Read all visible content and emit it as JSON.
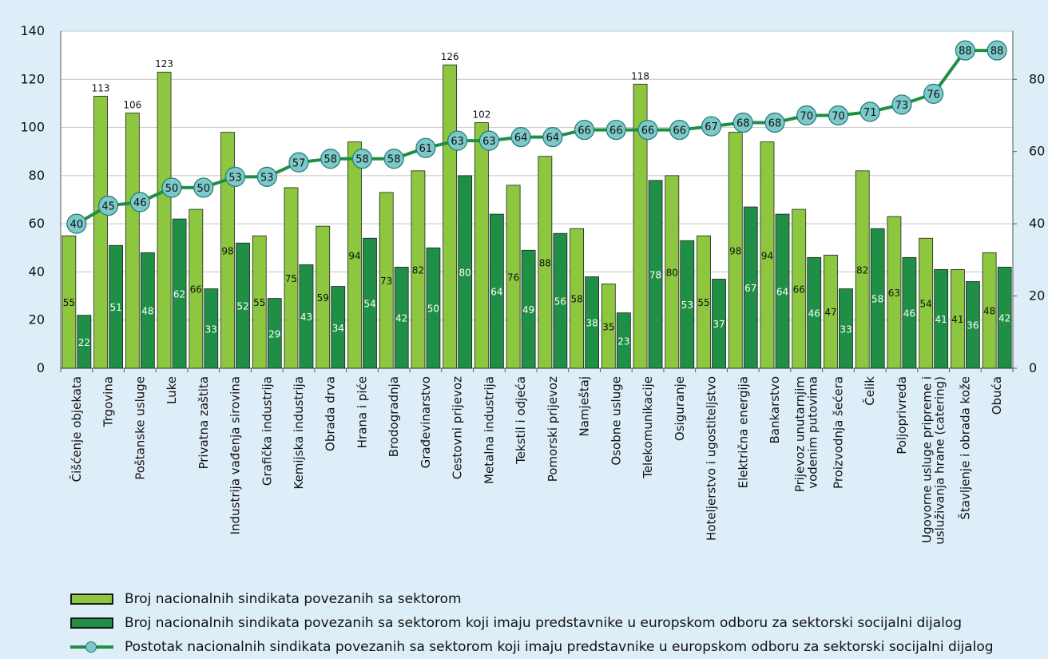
{
  "chart_data": {
    "type": "bar",
    "categories": [
      "Čišćenje objekata",
      "Trgovina",
      "Poštanske usluge",
      "Luke",
      "Privatna zaštita",
      "Industrija vađenja sirovina",
      "Grafička industrija",
      "Kemijska industrija",
      "Obrada drva",
      "Hrana i piće",
      "Brodogradnja",
      "Građevinarstvo",
      "Cestovni prijevoz",
      "Metalna industrija",
      "Tekstil i odjeća",
      "Pomorski prijevoz",
      "Namještaj",
      "Osobne usluge",
      "Telekomunikacije",
      "Osiguranje",
      "Hoteljerstvo i ugostiteljstvo",
      "Električna energija",
      "Bankarstvo",
      "Prijevoz unutarnjim vodenim putovima",
      "Proizvodnja šećera",
      "Čelik",
      "Poljoprivreda",
      "Ugovorne usluge pripreme i usluživanja hrane (catering)",
      "Štavljenje i obrada kože",
      "Obuća"
    ],
    "category_lines": [
      [
        "Čišćenje objekata"
      ],
      [
        "Trgovina"
      ],
      [
        "Poštanske usluge"
      ],
      [
        "Luke"
      ],
      [
        "Privatna zaštita"
      ],
      [
        "Industrija vađenja sirovina"
      ],
      [
        "Grafička industrija"
      ],
      [
        "Kemijska industrija"
      ],
      [
        "Obrada drva"
      ],
      [
        "Hrana i piće"
      ],
      [
        "Brodogradnja"
      ],
      [
        "Građevinarstvo"
      ],
      [
        "Cestovni prijevoz"
      ],
      [
        "Metalna industrija"
      ],
      [
        "Tekstil i odjeća"
      ],
      [
        "Pomorski prijevoz"
      ],
      [
        "Namještaj"
      ],
      [
        "Osobne usluge"
      ],
      [
        "Telekomunikacije"
      ],
      [
        "Osiguranje"
      ],
      [
        "Hoteljerstvo i ugostiteljstvo"
      ],
      [
        "Električna energija"
      ],
      [
        "Bankarstvo"
      ],
      [
        "Prijevoz unutarnjim",
        "vodenim putovima"
      ],
      [
        "Proizvodnja šećera"
      ],
      [
        "Čelik"
      ],
      [
        "Poljoprivreda"
      ],
      [
        "Ugovorne usluge pripreme i",
        "usluživanja hrane (catering)"
      ],
      [
        "Štavljenje i obrada kože"
      ],
      [
        "Obuća"
      ]
    ],
    "series": [
      {
        "name": "Broj nacionalnih sindikata povezanih sa sektorom",
        "kind": "bar",
        "axis": "left",
        "color": "#8dc63f",
        "values": [
          55,
          113,
          106,
          123,
          66,
          98,
          55,
          75,
          59,
          94,
          73,
          82,
          126,
          102,
          76,
          88,
          58,
          35,
          118,
          80,
          55,
          98,
          94,
          66,
          47,
          82,
          63,
          54,
          41,
          48
        ]
      },
      {
        "name": "Broj nacionalnih sindikata povezanih sa sektorom koji imaju predstavnike u europskom odboru za sektorski socijalni dijalog",
        "kind": "bar",
        "axis": "left",
        "color": "#1f8f45",
        "values": [
          22,
          51,
          48,
          62,
          33,
          52,
          29,
          43,
          34,
          54,
          42,
          50,
          80,
          64,
          49,
          56,
          38,
          23,
          78,
          53,
          37,
          67,
          64,
          46,
          33,
          58,
          46,
          41,
          36,
          42
        ]
      },
      {
        "name": "Postotak nacionalnih sindikata povezanih sa sektorom koji imaju predstavnike u europskom odboru za sektorski socijalni dijalog",
        "kind": "line",
        "axis": "right",
        "color": "#1f8f45",
        "marker_color": "#7dc8c8",
        "values": [
          40,
          45,
          46,
          50,
          50,
          53,
          53,
          57,
          58,
          58,
          58,
          61,
          63,
          63,
          64,
          64,
          66,
          66,
          66,
          66,
          67,
          68,
          68,
          70,
          70,
          71,
          73,
          76,
          88,
          88
        ]
      }
    ],
    "y_left": {
      "min": 0,
      "max": 140,
      "ticks": [
        0,
        20,
        40,
        60,
        80,
        100,
        120,
        140
      ]
    },
    "y_right": {
      "min": 0,
      "max": 93.33,
      "ticks": [
        0,
        20,
        40,
        60,
        80
      ]
    },
    "grid": "horizontal",
    "legend_position": "bottom",
    "title": "",
    "xlabel": "",
    "ylabel": ""
  },
  "legend": [
    {
      "label": "Broj nacionalnih sindikata povezanih sa sektorom",
      "swatch": "#8dc63f"
    },
    {
      "label": "Broj nacionalnih sindikata povezanih sa sektorom koji imaju predstavnike u europskom odboru za sektorski socijalni dijalog",
      "swatch": "#1f8f45"
    },
    {
      "label": "Postotak nacionalnih sindikata povezanih sa sektorom koji imaju predstavnike u europskom odboru za sektorski socijalni dijalog"
    }
  ]
}
